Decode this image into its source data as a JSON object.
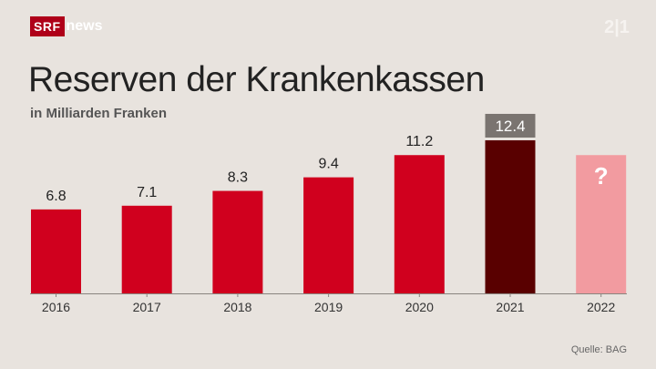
{
  "header": {
    "logo_brand": "SRF",
    "logo_text": "news",
    "watermark_text": "2|1",
    "title": "Reserven der Krankenkassen",
    "subtitle": "in Milliarden Franken"
  },
  "footer": {
    "source": "Quelle: BAG"
  },
  "colors": {
    "background": "#e8e3de",
    "bar_default": "#d0001e",
    "bar_highlight": "#590000",
    "bar_unknown": "#f29ba0",
    "highlight_label_bg": "#7a7470",
    "brand_red": "#af0019"
  },
  "chart_data": {
    "type": "bar",
    "title": "Reserven der Krankenkassen",
    "subtitle": "in Milliarden Franken",
    "xlabel": "",
    "ylabel": "",
    "ylim": [
      0,
      13
    ],
    "categories": [
      "2016",
      "2017",
      "2018",
      "2019",
      "2020",
      "2021",
      "2022"
    ],
    "values": [
      6.8,
      7.1,
      8.3,
      9.4,
      11.2,
      12.4,
      null
    ],
    "labels": [
      "6.8",
      "7.1",
      "8.3",
      "9.4",
      "11.2",
      "12.4",
      "?"
    ],
    "highlight": "2021",
    "unknown": "2022",
    "grid": false,
    "legend": "none"
  }
}
